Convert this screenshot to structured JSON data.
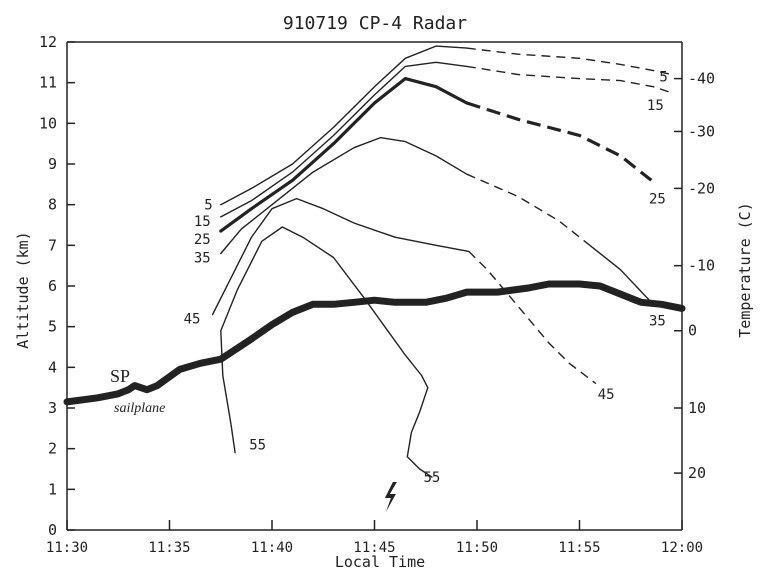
{
  "chart_data": {
    "type": "line",
    "title": "910719 CP-4 Radar",
    "xlabel": "Local Time",
    "ylabel": "Altitude (km)",
    "y2label": "Temperature (C)",
    "x_ticks": [
      "11:30",
      "11:35",
      "11:40",
      "11:45",
      "11:50",
      "11:55",
      "12:00"
    ],
    "xlim_minutes": [
      0,
      30
    ],
    "ylim": [
      0,
      12
    ],
    "y_ticks": [
      "0",
      "1",
      "2",
      "3",
      "4",
      "5",
      "6",
      "7",
      "8",
      "9",
      "10",
      "11",
      "12"
    ],
    "y2_ticks": [
      {
        "label": "-40",
        "altitude": 11.1
      },
      {
        "label": "-30",
        "altitude": 9.8
      },
      {
        "label": "-20",
        "altitude": 8.4
      },
      {
        "label": "-10",
        "altitude": 6.5
      },
      {
        "label": "0",
        "altitude": 4.9
      },
      {
        "label": "10",
        "altitude": 3.0
      },
      {
        "label": "20",
        "altitude": 1.4
      }
    ],
    "grid": false,
    "series": [
      {
        "name": "5",
        "style": "thin",
        "solid": [
          [
            7.5,
            8.0
          ],
          [
            9,
            8.4
          ],
          [
            11,
            9.0
          ],
          [
            13,
            9.9
          ],
          [
            15,
            10.9
          ],
          [
            16.5,
            11.6
          ],
          [
            18,
            11.9
          ],
          [
            19.5,
            11.85
          ]
        ],
        "dashed": [
          [
            19.5,
            11.85
          ],
          [
            22,
            11.7
          ],
          [
            25,
            11.6
          ],
          [
            27,
            11.45
          ],
          [
            28.6,
            11.3
          ],
          [
            29.5,
            11.2
          ]
        ]
      },
      {
        "name": "15",
        "style": "thin",
        "solid": [
          [
            7.5,
            7.7
          ],
          [
            9,
            8.1
          ],
          [
            11,
            8.8
          ],
          [
            13,
            9.7
          ],
          [
            15,
            10.7
          ],
          [
            16.5,
            11.4
          ],
          [
            18,
            11.5
          ],
          [
            19.5,
            11.4
          ]
        ],
        "dashed": [
          [
            19.5,
            11.4
          ],
          [
            22,
            11.2
          ],
          [
            25,
            11.1
          ],
          [
            27,
            11.05
          ],
          [
            28.6,
            10.9
          ],
          [
            29.5,
            10.75
          ]
        ]
      },
      {
        "name": "25",
        "style": "thick",
        "solid": [
          [
            7.5,
            7.35
          ],
          [
            9,
            7.9
          ],
          [
            11,
            8.6
          ],
          [
            13,
            9.5
          ],
          [
            15,
            10.5
          ],
          [
            16.5,
            11.1
          ],
          [
            18,
            10.9
          ],
          [
            19.5,
            10.5
          ]
        ],
        "dashed": [
          [
            19.5,
            10.5
          ],
          [
            22,
            10.1
          ],
          [
            25,
            9.7
          ],
          [
            27,
            9.2
          ],
          [
            28.5,
            8.6
          ]
        ]
      },
      {
        "name": "35",
        "style": "thin",
        "solid": [
          [
            7.5,
            6.8
          ],
          [
            8.5,
            7.4
          ],
          [
            10,
            8.0
          ],
          [
            12,
            8.8
          ],
          [
            14,
            9.4
          ],
          [
            15.3,
            9.65
          ],
          [
            16.5,
            9.55
          ],
          [
            18,
            9.2
          ],
          [
            19.5,
            8.75
          ]
        ],
        "dashed": [
          [
            19.5,
            8.75
          ],
          [
            22,
            8.2
          ],
          [
            24,
            7.6
          ],
          [
            25.5,
            7.0
          ]
        ],
        "solid2": [
          [
            25.5,
            7.0
          ],
          [
            27,
            6.4
          ],
          [
            28.5,
            5.6
          ]
        ]
      },
      {
        "name": "45",
        "style": "thin",
        "solid": [
          [
            7.1,
            5.3
          ],
          [
            8,
            6.2
          ],
          [
            9,
            7.2
          ],
          [
            10,
            7.9
          ],
          [
            11.2,
            8.15
          ],
          [
            12.5,
            7.9
          ],
          [
            14,
            7.55
          ],
          [
            16,
            7.2
          ],
          [
            18,
            7.0
          ],
          [
            19.6,
            6.85
          ]
        ],
        "dashed": [
          [
            19.6,
            6.85
          ],
          [
            20.5,
            6.4
          ],
          [
            21.5,
            5.8
          ],
          [
            22.5,
            5.2
          ],
          [
            23.5,
            4.6
          ],
          [
            24.5,
            4.1
          ],
          [
            25.8,
            3.6
          ]
        ]
      },
      {
        "name": "55",
        "style": "thin",
        "solid": [
          [
            8.2,
            1.9
          ],
          [
            8,
            2.6
          ],
          [
            7.6,
            3.8
          ],
          [
            7.5,
            4.9
          ],
          [
            8.3,
            5.9
          ],
          [
            9.5,
            7.1
          ],
          [
            10.5,
            7.45
          ],
          [
            11.5,
            7.2
          ],
          [
            13,
            6.7
          ],
          [
            14.5,
            5.7
          ],
          [
            15.5,
            5.0
          ],
          [
            16.5,
            4.3
          ],
          [
            17.3,
            3.8
          ],
          [
            17.6,
            3.5
          ],
          [
            17.2,
            2.9
          ],
          [
            16.8,
            2.4
          ],
          [
            16.6,
            1.8
          ],
          [
            17.2,
            1.5
          ],
          [
            17.8,
            1.3
          ]
        ]
      },
      {
        "name": "SP",
        "style": "sailplane",
        "solid": [
          [
            0,
            3.15
          ],
          [
            1.5,
            3.25
          ],
          [
            2.5,
            3.35
          ],
          [
            3,
            3.45
          ],
          [
            3.3,
            3.55
          ],
          [
            3.9,
            3.45
          ],
          [
            4.4,
            3.55
          ],
          [
            5.5,
            3.95
          ],
          [
            6.5,
            4.1
          ],
          [
            7.5,
            4.2
          ],
          [
            9,
            4.7
          ],
          [
            10,
            5.05
          ],
          [
            11,
            5.35
          ],
          [
            12,
            5.55
          ],
          [
            13,
            5.55
          ],
          [
            14,
            5.6
          ],
          [
            15,
            5.65
          ],
          [
            16,
            5.6
          ],
          [
            17.5,
            5.6
          ],
          [
            18.5,
            5.7
          ],
          [
            19.5,
            5.85
          ],
          [
            21,
            5.85
          ],
          [
            22.5,
            5.95
          ],
          [
            23.5,
            6.05
          ],
          [
            25,
            6.05
          ],
          [
            26,
            6.0
          ],
          [
            27,
            5.8
          ],
          [
            28,
            5.6
          ],
          [
            29,
            5.55
          ],
          [
            30,
            5.45
          ]
        ]
      }
    ],
    "labels": [
      {
        "text": "5",
        "x": 6.9,
        "y": 8.0
      },
      {
        "text": "15",
        "x": 6.6,
        "y": 7.6
      },
      {
        "text": "25",
        "x": 6.6,
        "y": 7.15
      },
      {
        "text": "35",
        "x": 6.6,
        "y": 6.7
      },
      {
        "text": "45",
        "x": 6.1,
        "y": 5.2
      },
      {
        "text": "55",
        "x": 9.3,
        "y": 2.1
      },
      {
        "text": "55",
        "x": 17.8,
        "y": 1.3
      },
      {
        "text": "45",
        "x": 26.3,
        "y": 3.35
      },
      {
        "text": "35",
        "x": 28.8,
        "y": 5.15
      },
      {
        "text": "25",
        "x": 28.8,
        "y": 8.15
      },
      {
        "text": "15",
        "x": 28.7,
        "y": 10.45
      },
      {
        "text": "5",
        "x": 29.1,
        "y": 11.15
      }
    ],
    "annotations": {
      "sp_label": "SP",
      "sailplane_note": "sailplane",
      "lightning_x": 15.8
    }
  }
}
